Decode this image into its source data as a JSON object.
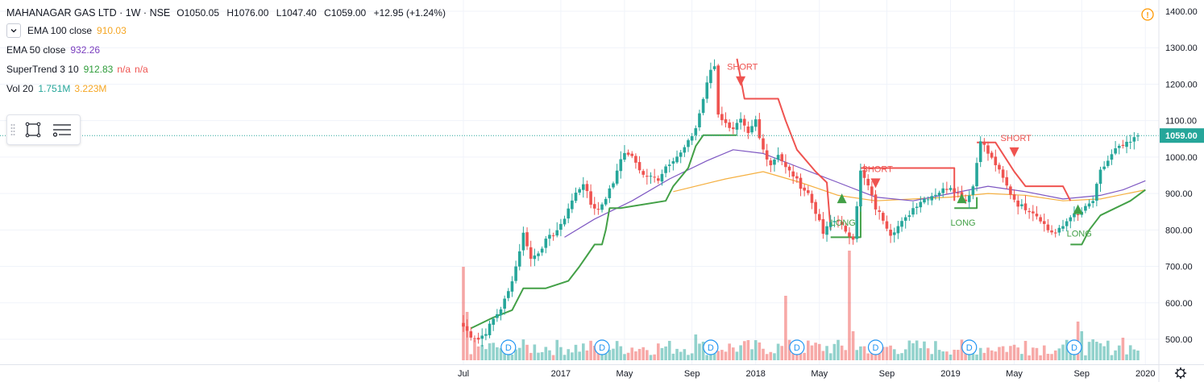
{
  "header": {
    "title": "MAHANAGAR GAS LTD · 1W · NSE",
    "ohlc": [
      {
        "label": "O",
        "value": "1050.05"
      },
      {
        "label": "H",
        "value": "1076.00"
      },
      {
        "label": "L",
        "value": "1047.40"
      },
      {
        "label": "C",
        "value": "1059.00"
      }
    ],
    "change": "+12.95 (+1.24%)"
  },
  "indicators": [
    {
      "name": "EMA 100 close",
      "values": [
        "910.03"
      ],
      "colors": [
        "#f5a623"
      ]
    },
    {
      "name": "EMA 50 close",
      "values": [
        "932.26"
      ],
      "colors": [
        "#7b3fbf"
      ]
    },
    {
      "name": "SuperTrend 3 10",
      "values": [
        "912.83",
        "n/a",
        "n/a"
      ],
      "colors": [
        "#2e9c3a",
        "#ef5350",
        "#ef5350"
      ]
    },
    {
      "name": "Vol 20",
      "values": [
        "1.751M",
        "3.223M"
      ],
      "colors": [
        "#26a69a",
        "#f5a623"
      ]
    }
  ],
  "colors": {
    "up": "#26a69a",
    "down": "#ef5350",
    "supertrend_up": "#43a047",
    "supertrend_down": "#ef5350",
    "ema100": "#f5b041",
    "ema50": "#7e57c2",
    "last_price_bg": "#26a69a",
    "dividend": "#2196f3"
  },
  "icons": {
    "collapse": "chevron-down-icon",
    "rectangle_tool": "rectangle-icon",
    "menu_tool": "lines-icon",
    "alert": "warning-icon",
    "settings": "gear-icon"
  },
  "chart_data": {
    "type": "candlestick",
    "symbol": "MAHANAGAR GAS LTD",
    "interval": "1W",
    "exchange": "NSE",
    "ylim": [
      440,
      1420
    ],
    "y_ticks": [
      500,
      600,
      700,
      800,
      900,
      1000,
      1100,
      1200,
      1300,
      1400
    ],
    "y_tick_labels": [
      "500.00",
      "600.00",
      "700.00",
      "800.00",
      "900.00",
      "1000.00",
      "1100.00",
      "1200.00",
      "1300.00",
      "1400.00"
    ],
    "last_price": 1059,
    "last_price_label": "1059.00",
    "x_ticks": [
      {
        "label": "Jul",
        "week": 0
      },
      {
        "label": "2017",
        "week": 26
      },
      {
        "label": "May",
        "week": 43
      },
      {
        "label": "Sep",
        "week": 61
      },
      {
        "label": "2018",
        "week": 78
      },
      {
        "label": "May",
        "week": 95
      },
      {
        "label": "Sep",
        "week": 113
      },
      {
        "label": "2019",
        "week": 130
      },
      {
        "label": "May",
        "week": 147
      },
      {
        "label": "Sep",
        "week": 165
      },
      {
        "label": "2020",
        "week": 182
      }
    ],
    "close_anchors": [
      [
        0,
        535
      ],
      [
        2,
        510
      ],
      [
        4,
        500
      ],
      [
        6,
        520
      ],
      [
        8,
        555
      ],
      [
        10,
        585
      ],
      [
        12,
        630
      ],
      [
        14,
        700
      ],
      [
        16,
        790
      ],
      [
        17,
        760
      ],
      [
        18,
        720
      ],
      [
        20,
        740
      ],
      [
        22,
        770
      ],
      [
        24,
        790
      ],
      [
        26,
        810
      ],
      [
        28,
        860
      ],
      [
        30,
        900
      ],
      [
        32,
        930
      ],
      [
        34,
        870
      ],
      [
        36,
        855
      ],
      [
        38,
        890
      ],
      [
        40,
        930
      ],
      [
        42,
        1000
      ],
      [
        44,
        1010
      ],
      [
        46,
        985
      ],
      [
        48,
        950
      ],
      [
        50,
        945
      ],
      [
        52,
        940
      ],
      [
        54,
        975
      ],
      [
        56,
        995
      ],
      [
        58,
        1010
      ],
      [
        60,
        1040
      ],
      [
        62,
        1080
      ],
      [
        64,
        1160
      ],
      [
        66,
        1240
      ],
      [
        67,
        1250
      ],
      [
        68,
        1120
      ],
      [
        70,
        1090
      ],
      [
        72,
        1080
      ],
      [
        74,
        1100
      ],
      [
        76,
        1060
      ],
      [
        78,
        1100
      ],
      [
        79,
        1050
      ],
      [
        80,
        1020
      ],
      [
        82,
        980
      ],
      [
        84,
        1010
      ],
      [
        86,
        970
      ],
      [
        88,
        950
      ],
      [
        90,
        920
      ],
      [
        92,
        900
      ],
      [
        94,
        850
      ],
      [
        96,
        790
      ],
      [
        98,
        820
      ],
      [
        100,
        830
      ],
      [
        102,
        790
      ],
      [
        104,
        780
      ],
      [
        106,
        960
      ],
      [
        108,
        920
      ],
      [
        110,
        860
      ],
      [
        112,
        830
      ],
      [
        114,
        790
      ],
      [
        116,
        810
      ],
      [
        118,
        830
      ],
      [
        120,
        860
      ],
      [
        122,
        880
      ],
      [
        124,
        890
      ],
      [
        126,
        900
      ],
      [
        128,
        910
      ],
      [
        130,
        920
      ],
      [
        132,
        900
      ],
      [
        134,
        880
      ],
      [
        136,
        920
      ],
      [
        138,
        1050
      ],
      [
        140,
        1010
      ],
      [
        142,
        980
      ],
      [
        144,
        940
      ],
      [
        146,
        900
      ],
      [
        148,
        870
      ],
      [
        150,
        860
      ],
      [
        152,
        850
      ],
      [
        154,
        830
      ],
      [
        156,
        800
      ],
      [
        158,
        790
      ],
      [
        160,
        810
      ],
      [
        162,
        840
      ],
      [
        164,
        840
      ],
      [
        166,
        860
      ],
      [
        168,
        880
      ],
      [
        170,
        960
      ],
      [
        172,
        990
      ],
      [
        174,
        1020
      ],
      [
        176,
        1030
      ],
      [
        178,
        1040
      ],
      [
        180,
        1060
      ]
    ],
    "volume_ylim": [
      0,
      4
    ],
    "volume_units": "M",
    "volume_spikes": [
      [
        0,
        2.9
      ],
      [
        1,
        1.5
      ],
      [
        62,
        0.8
      ],
      [
        66,
        0.6
      ],
      [
        86,
        2.0
      ],
      [
        103,
        3.4
      ],
      [
        104,
        0.9
      ],
      [
        150,
        0.6
      ],
      [
        164,
        1.2
      ],
      [
        165,
        0.9
      ],
      [
        176,
        0.7
      ]
    ],
    "supertrend_segments": [
      {
        "dir": "up",
        "points": [
          [
            2,
            530
          ],
          [
            8,
            560
          ],
          [
            13,
            580
          ],
          [
            16,
            640
          ],
          [
            22,
            640
          ],
          [
            28,
            660
          ],
          [
            31,
            700
          ],
          [
            33,
            730
          ],
          [
            35,
            760
          ],
          [
            37,
            760
          ],
          [
            38,
            800
          ],
          [
            39,
            860
          ],
          [
            42,
            860
          ],
          [
            54,
            880
          ],
          [
            56,
            920
          ],
          [
            60,
            970
          ],
          [
            62,
            1030
          ],
          [
            64,
            1060
          ],
          [
            73,
            1060
          ]
        ]
      },
      {
        "dir": "down",
        "points": [
          [
            73,
            1270
          ],
          [
            75,
            1160
          ],
          [
            84,
            1160
          ],
          [
            86,
            1100
          ],
          [
            89,
            1020
          ],
          [
            94,
            960
          ],
          [
            97,
            930
          ],
          [
            98,
            800
          ]
        ]
      },
      {
        "dir": "up",
        "points": [
          [
            98,
            780
          ],
          [
            106,
            780
          ],
          [
            106,
            880
          ]
        ]
      },
      {
        "dir": "down",
        "points": [
          [
            106,
            970
          ],
          [
            131,
            970
          ],
          [
            131,
            880
          ]
        ]
      },
      {
        "dir": "up",
        "points": [
          [
            131,
            860
          ],
          [
            137,
            860
          ],
          [
            137,
            890
          ]
        ]
      },
      {
        "dir": "down",
        "points": [
          [
            137,
            1040
          ],
          [
            142,
            1040
          ],
          [
            147,
            960
          ],
          [
            150,
            920
          ],
          [
            160,
            920
          ],
          [
            162,
            880
          ]
        ]
      },
      {
        "dir": "up",
        "points": [
          [
            162,
            760
          ],
          [
            165,
            760
          ],
          [
            167,
            800
          ],
          [
            170,
            840
          ],
          [
            174,
            860
          ],
          [
            178,
            880
          ],
          [
            182,
            910
          ]
        ]
      }
    ],
    "ema50": [
      [
        27,
        780
      ],
      [
        35,
        830
      ],
      [
        45,
        880
      ],
      [
        55,
        940
      ],
      [
        65,
        990
      ],
      [
        72,
        1020
      ],
      [
        80,
        1010
      ],
      [
        90,
        970
      ],
      [
        100,
        930
      ],
      [
        110,
        890
      ],
      [
        120,
        880
      ],
      [
        130,
        900
      ],
      [
        140,
        920
      ],
      [
        150,
        905
      ],
      [
        160,
        885
      ],
      [
        170,
        895
      ],
      [
        176,
        910
      ],
      [
        182,
        935
      ]
    ],
    "ema100": [
      [
        56,
        905
      ],
      [
        70,
        940
      ],
      [
        80,
        960
      ],
      [
        90,
        930
      ],
      [
        100,
        895
      ],
      [
        110,
        880
      ],
      [
        120,
        885
      ],
      [
        130,
        890
      ],
      [
        140,
        900
      ],
      [
        150,
        895
      ],
      [
        160,
        880
      ],
      [
        170,
        885
      ],
      [
        182,
        910
      ]
    ],
    "signals": [
      {
        "label": "SHORT",
        "type": "short",
        "week": 74,
        "price": 1195,
        "label_above": true
      },
      {
        "label": "SHORT",
        "type": "short",
        "week": 110,
        "price": 915,
        "label_above": true
      },
      {
        "label": "SHORT",
        "type": "short",
        "week": 147,
        "price": 1000,
        "label_above": true
      },
      {
        "label": "LONG",
        "type": "long",
        "week": 101,
        "price": 900,
        "label_above": false
      },
      {
        "label": "LONG",
        "type": "long",
        "week": 133,
        "price": 900,
        "label_above": false
      },
      {
        "label": "LONG",
        "type": "long",
        "week": 164,
        "price": 870,
        "label_above": false
      }
    ],
    "dividends": [
      {
        "label": "D",
        "week": 12
      },
      {
        "label": "D",
        "week": 37
      },
      {
        "label": "D",
        "week": 66
      },
      {
        "label": "D",
        "week": 89
      },
      {
        "label": "D",
        "week": 110
      },
      {
        "label": "D",
        "week": 135
      },
      {
        "label": "D",
        "week": 163
      }
    ]
  }
}
